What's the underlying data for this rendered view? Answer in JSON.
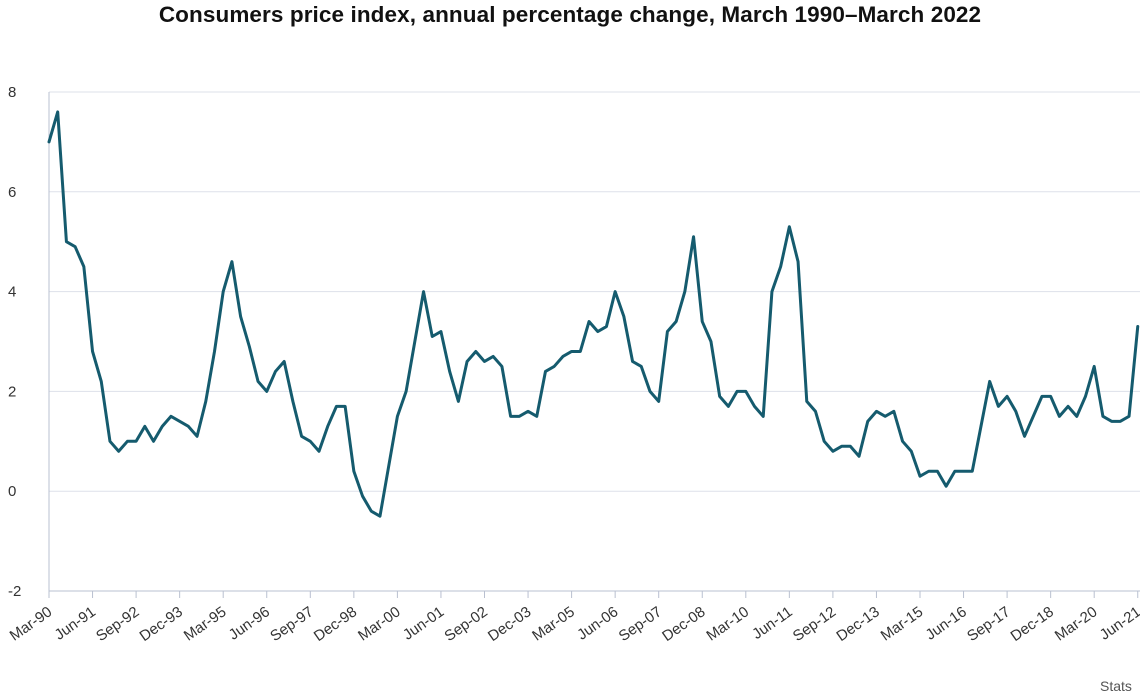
{
  "colors": {
    "line": "#155b6e",
    "grid": "#dde1ea",
    "axis": "#b9c0d0",
    "text": "#333333"
  },
  "source_note": "Stats",
  "chart_data": {
    "type": "line",
    "title": "Consumers price index, annual percentage change, March 1990–March 2022",
    "xlabel": "",
    "ylabel": "",
    "ylim": [
      -2,
      8
    ],
    "y_ticks": [
      -2,
      0,
      2,
      4,
      6,
      8
    ],
    "grid": true,
    "x_tick_labels": [
      "Mar-90",
      "Jun-91",
      "Sep-92",
      "Dec-93",
      "Mar-95",
      "Jun-96",
      "Sep-97",
      "Dec-98",
      "Mar-00",
      "Jun-01",
      "Sep-02",
      "Dec-03",
      "Mar-05",
      "Jun-06",
      "Sep-07",
      "Dec-08",
      "Mar-10",
      "Jun-11",
      "Sep-12",
      "Dec-13",
      "Mar-15",
      "Jun-16",
      "Sep-17",
      "Dec-18",
      "Mar-20",
      "Jun-21"
    ],
    "series": [
      {
        "values": [
          7.0,
          7.6,
          5.0,
          4.9,
          4.5,
          2.8,
          2.2,
          1.0,
          0.8,
          1.0,
          1.0,
          1.3,
          1.0,
          1.3,
          1.5,
          1.4,
          1.3,
          1.1,
          1.8,
          2.8,
          4.0,
          4.6,
          3.5,
          2.9,
          2.2,
          2.0,
          2.4,
          2.6,
          1.8,
          1.1,
          1.0,
          0.8,
          1.3,
          1.7,
          1.7,
          0.4,
          -0.1,
          -0.4,
          -0.5,
          0.5,
          1.5,
          2.0,
          3.0,
          4.0,
          3.1,
          3.2,
          2.4,
          1.8,
          2.6,
          2.8,
          2.6,
          2.7,
          2.5,
          1.5,
          1.5,
          1.6,
          1.5,
          2.4,
          2.5,
          2.7,
          2.8,
          2.8,
          3.4,
          3.2,
          3.3,
          4.0,
          3.5,
          2.6,
          2.5,
          2.0,
          1.8,
          3.2,
          3.4,
          4.0,
          5.1,
          3.4,
          3.0,
          1.9,
          1.7,
          2.0,
          2.0,
          1.7,
          1.5,
          4.0,
          4.5,
          5.3,
          4.6,
          1.8,
          1.6,
          1.0,
          0.8,
          0.9,
          0.9,
          0.7,
          1.4,
          1.6,
          1.5,
          1.6,
          1.0,
          0.8,
          0.3,
          0.4,
          0.4,
          0.1,
          0.4,
          0.4,
          0.4,
          1.3,
          2.2,
          1.7,
          1.9,
          1.6,
          1.1,
          1.5,
          1.9,
          1.9,
          1.5,
          1.7,
          1.5,
          1.9,
          2.5,
          1.5,
          1.4,
          1.4,
          1.5,
          3.3
        ]
      }
    ]
  }
}
